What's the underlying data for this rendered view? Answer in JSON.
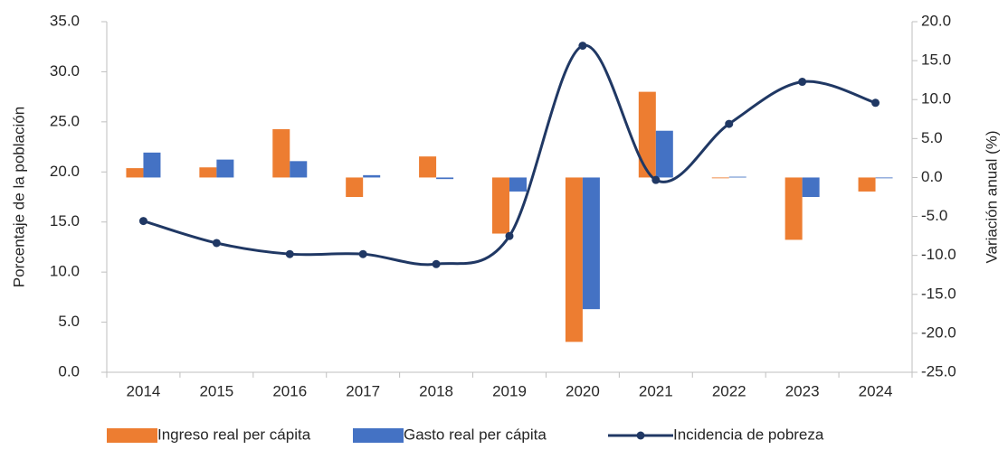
{
  "chart_data": {
    "type": "bar_line",
    "categories": [
      "2014",
      "2015",
      "2016",
      "2017",
      "2018",
      "2019",
      "2020",
      "2021",
      "2022",
      "2023",
      "2024"
    ],
    "ylabel": "Porcentaje de la población",
    "y2label": "Variación anual (%)",
    "series": [
      {
        "name": "Ingreso real per cápita",
        "color": "#ED7D31",
        "type": "bar",
        "axis": "y2",
        "values": [
          1.2,
          1.3,
          6.2,
          -2.5,
          2.7,
          -7.2,
          -21.1,
          11.0,
          -0.1,
          -8.0,
          -1.8
        ]
      },
      {
        "name": "Gasto real per cápita",
        "color": "#4472C4",
        "type": "bar",
        "axis": "y2",
        "values": [
          3.2,
          2.3,
          2.1,
          0.3,
          -0.2,
          -1.8,
          -16.9,
          6.0,
          0.1,
          -2.5,
          -0.1
        ]
      },
      {
        "name": "Incidencia de pobreza",
        "color": "#203864",
        "type": "line",
        "axis": "y",
        "values": [
          15.1,
          12.9,
          11.8,
          11.8,
          10.8,
          13.6,
          32.6,
          19.2,
          24.8,
          29.0,
          26.9
        ]
      }
    ],
    "ylim": [
      0,
      35
    ],
    "yticks": [
      {
        "value": 0,
        "label": "0.0"
      },
      {
        "value": 5,
        "label": "5.0"
      },
      {
        "value": 10,
        "label": "10.0"
      },
      {
        "value": 15,
        "label": "15.0"
      },
      {
        "value": 20,
        "label": "20.0"
      },
      {
        "value": 25,
        "label": "25.0"
      },
      {
        "value": 30,
        "label": "30.0"
      },
      {
        "value": 35,
        "label": "35.0"
      }
    ],
    "y2lim": [
      -25,
      20
    ],
    "y2ticks": [
      {
        "value": -25,
        "label": "-25.0"
      },
      {
        "value": -20,
        "label": "-20.0"
      },
      {
        "value": -15,
        "label": "-15.0"
      },
      {
        "value": -10,
        "label": "-10.0"
      },
      {
        "value": -5,
        "label": "-5.0"
      },
      {
        "value": 0,
        "label": "0.0"
      },
      {
        "value": 5,
        "label": "5.0"
      },
      {
        "value": 10,
        "label": "10.0"
      },
      {
        "value": 15,
        "label": "15.0"
      },
      {
        "value": 20,
        "label": "20.0"
      }
    ],
    "legend": "bottom"
  }
}
